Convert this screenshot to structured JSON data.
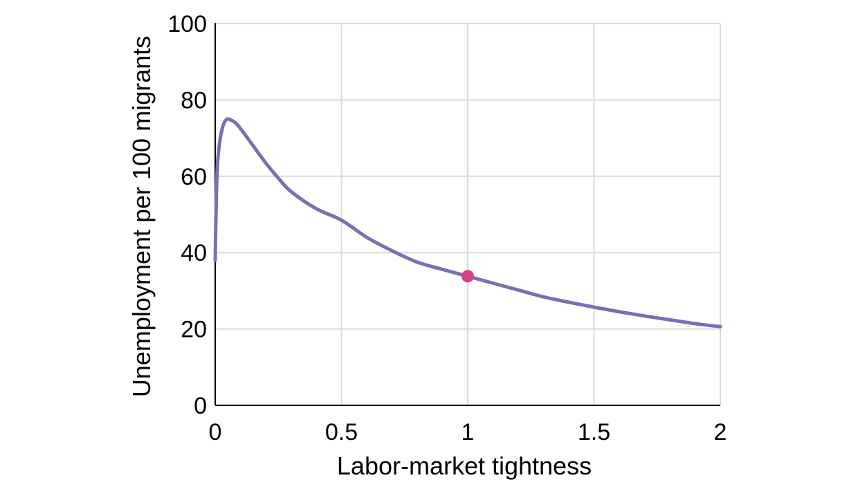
{
  "chart_data": {
    "type": "line",
    "title": "",
    "xlabel": "Labor-market tightness",
    "ylabel": "Unemployment per 100 migrants",
    "xlim": [
      0,
      2
    ],
    "ylim": [
      0,
      100
    ],
    "x_ticks": [
      0,
      0.5,
      1,
      1.5,
      2
    ],
    "x_tick_labels": [
      "0",
      "0.5",
      "1",
      "1.5",
      "2"
    ],
    "y_ticks": [
      0,
      20,
      40,
      60,
      80,
      100
    ],
    "y_tick_labels": [
      "0",
      "20",
      "40",
      "60",
      "80",
      "100"
    ],
    "grid": true,
    "series": [
      {
        "color": "#7472b3",
        "x": [
          0,
          0.005,
          0.01,
          0.02,
          0.03,
          0.04,
          0.05,
          0.06,
          0.08,
          0.1,
          0.15,
          0.2,
          0.25,
          0.3,
          0.4,
          0.5,
          0.6,
          0.7,
          0.8,
          0.9,
          1.0,
          1.1,
          1.2,
          1.3,
          1.4,
          1.5,
          1.6,
          1.7,
          1.8,
          1.9,
          2.0
        ],
        "y": [
          38,
          56,
          64,
          70,
          73,
          74.5,
          75,
          74.8,
          74,
          72.5,
          68,
          63.5,
          59.5,
          56,
          51.5,
          48.5,
          44,
          40.5,
          37.5,
          35.6,
          33.8,
          32,
          30.2,
          28.4,
          27,
          25.7,
          24.5,
          23.4,
          22.4,
          21.4,
          20.6
        ]
      }
    ],
    "highlight_point": {
      "x": 1,
      "y": 33.8,
      "color": "#d6418a"
    }
  }
}
